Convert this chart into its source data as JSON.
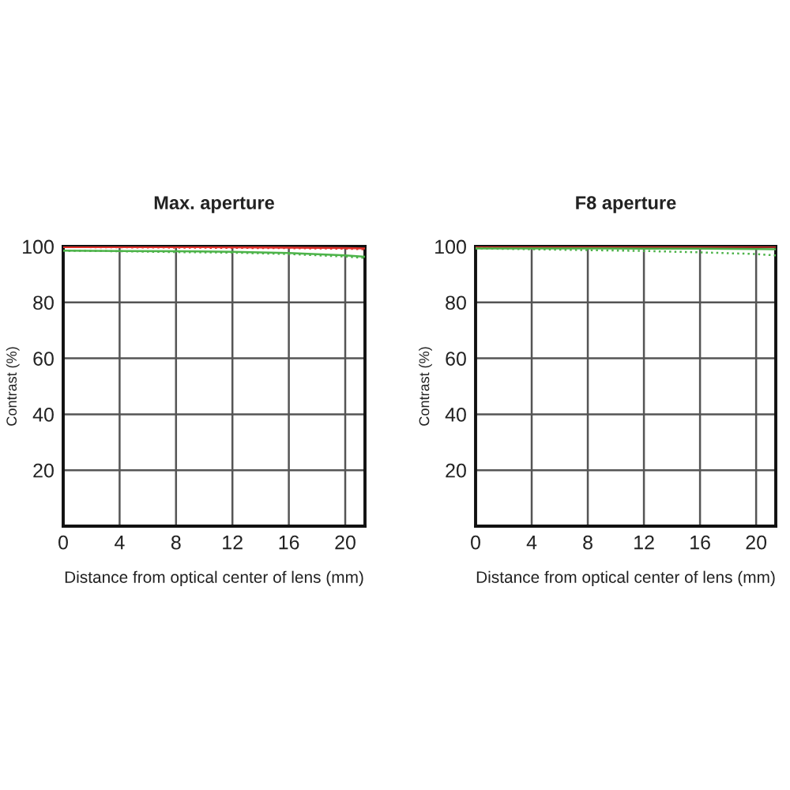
{
  "chart_data": [
    {
      "type": "line",
      "title": "Max. aperture",
      "xlabel": "Distance from optical center of lens (mm)",
      "ylabel": "Contrast (%)",
      "x": [
        0,
        4,
        8,
        12,
        16,
        20,
        21.4
      ],
      "series": [
        {
          "color": "#e0312b",
          "line_style": "solid",
          "values": [
            99.8,
            99.8,
            99.8,
            99.7,
            99.6,
            99.4,
            99.3
          ]
        },
        {
          "color": "#e0312b",
          "line_style": "dotted",
          "values": [
            99.8,
            99.7,
            99.6,
            99.5,
            99.4,
            99.2,
            99.0
          ]
        },
        {
          "color": "#4db34a",
          "line_style": "solid",
          "values": [
            98.5,
            98.4,
            98.3,
            98.1,
            97.7,
            96.8,
            96.3
          ]
        },
        {
          "color": "#4db34a",
          "line_style": "dotted",
          "values": [
            98.5,
            98.3,
            98.0,
            97.8,
            97.3,
            96.4,
            95.9
          ]
        }
      ],
      "xlim": [
        0,
        21.4
      ],
      "ylim": [
        0,
        100
      ],
      "xticks": [
        0,
        4,
        8,
        12,
        16,
        20
      ],
      "yticks": [
        20,
        40,
        60,
        80,
        100
      ],
      "grid": true
    },
    {
      "type": "line",
      "title": "F8 aperture",
      "xlabel": "Distance from optical center of lens (mm)",
      "ylabel": "Contrast (%)",
      "x": [
        0,
        4,
        8,
        12,
        16,
        20,
        21.4
      ],
      "series": [
        {
          "color": "#e0312b",
          "line_style": "solid",
          "values": [
            99.9,
            99.9,
            99.9,
            99.9,
            99.9,
            99.9,
            99.9
          ]
        },
        {
          "color": "#4db34a",
          "line_style": "solid",
          "values": [
            99.3,
            99.3,
            99.3,
            99.2,
            99.2,
            99.1,
            99.0
          ]
        },
        {
          "color": "#4db34a",
          "line_style": "dotted",
          "values": [
            99.3,
            99.0,
            98.7,
            98.4,
            97.9,
            97.3,
            96.8
          ]
        }
      ],
      "xlim": [
        0,
        21.4
      ],
      "ylim": [
        0,
        100
      ],
      "xticks": [
        0,
        4,
        8,
        12,
        16,
        20
      ],
      "yticks": [
        20,
        40,
        60,
        80,
        100
      ],
      "grid": true
    }
  ]
}
